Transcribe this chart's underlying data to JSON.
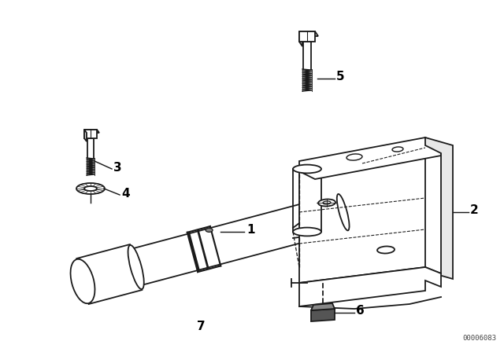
{
  "bg_color": "#ffffff",
  "line_color": "#1a1a1a",
  "watermark": "00006083",
  "figsize": [
    6.4,
    4.48
  ],
  "dpi": 100
}
